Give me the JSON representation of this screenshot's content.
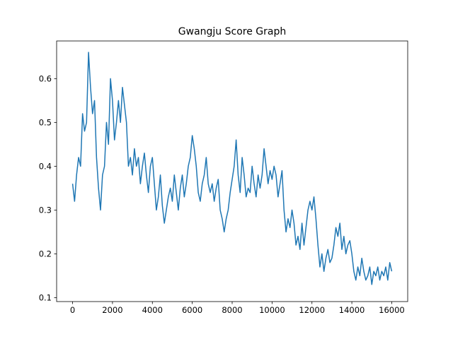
{
  "chart_data": {
    "type": "line",
    "title": "Gwangju Score Graph",
    "x": [
      0,
      100,
      200,
      300,
      400,
      500,
      600,
      700,
      800,
      900,
      1000,
      1100,
      1200,
      1300,
      1400,
      1500,
      1600,
      1700,
      1800,
      1900,
      2000,
      2100,
      2200,
      2300,
      2400,
      2500,
      2600,
      2700,
      2800,
      2900,
      3000,
      3100,
      3200,
      3300,
      3400,
      3500,
      3600,
      3700,
      3800,
      3900,
      4000,
      4100,
      4200,
      4300,
      4400,
      4500,
      4600,
      4700,
      4800,
      4900,
      5000,
      5100,
      5200,
      5300,
      5400,
      5500,
      5600,
      5700,
      5800,
      5900,
      6000,
      6100,
      6200,
      6300,
      6400,
      6500,
      6600,
      6700,
      6800,
      6900,
      7000,
      7100,
      7200,
      7300,
      7400,
      7500,
      7600,
      7700,
      7800,
      7900,
      8000,
      8100,
      8200,
      8300,
      8400,
      8500,
      8600,
      8700,
      8800,
      8900,
      9000,
      9100,
      9200,
      9300,
      9400,
      9500,
      9600,
      9700,
      9800,
      9900,
      10000,
      10100,
      10200,
      10300,
      10400,
      10500,
      10600,
      10700,
      10800,
      10900,
      11000,
      11100,
      11200,
      11300,
      11400,
      11500,
      11600,
      11700,
      11800,
      11900,
      12000,
      12100,
      12200,
      12300,
      12400,
      12500,
      12600,
      12700,
      12800,
      12900,
      13000,
      13100,
      13200,
      13300,
      13400,
      13500,
      13600,
      13700,
      13800,
      13900,
      14000,
      14100,
      14200,
      14300,
      14400,
      14500,
      14600,
      14700,
      14800,
      14900,
      15000,
      15100,
      15200,
      15300,
      15400,
      15500,
      15600,
      15700,
      15800,
      15900,
      16000
    ],
    "values": [
      0.36,
      0.32,
      0.38,
      0.42,
      0.4,
      0.52,
      0.48,
      0.5,
      0.66,
      0.58,
      0.52,
      0.55,
      0.42,
      0.35,
      0.3,
      0.38,
      0.4,
      0.5,
      0.45,
      0.6,
      0.55,
      0.46,
      0.5,
      0.55,
      0.5,
      0.58,
      0.54,
      0.5,
      0.4,
      0.42,
      0.38,
      0.44,
      0.4,
      0.42,
      0.36,
      0.4,
      0.43,
      0.38,
      0.34,
      0.4,
      0.42,
      0.36,
      0.3,
      0.33,
      0.38,
      0.31,
      0.27,
      0.3,
      0.33,
      0.35,
      0.32,
      0.38,
      0.34,
      0.3,
      0.35,
      0.38,
      0.33,
      0.36,
      0.4,
      0.42,
      0.47,
      0.44,
      0.4,
      0.34,
      0.32,
      0.36,
      0.38,
      0.42,
      0.36,
      0.34,
      0.36,
      0.32,
      0.35,
      0.37,
      0.3,
      0.28,
      0.25,
      0.28,
      0.3,
      0.34,
      0.37,
      0.4,
      0.46,
      0.38,
      0.34,
      0.42,
      0.38,
      0.33,
      0.35,
      0.34,
      0.4,
      0.36,
      0.33,
      0.38,
      0.35,
      0.38,
      0.44,
      0.4,
      0.36,
      0.39,
      0.37,
      0.4,
      0.38,
      0.33,
      0.36,
      0.39,
      0.3,
      0.25,
      0.28,
      0.26,
      0.3,
      0.27,
      0.22,
      0.24,
      0.21,
      0.27,
      0.22,
      0.26,
      0.3,
      0.32,
      0.3,
      0.33,
      0.28,
      0.22,
      0.17,
      0.2,
      0.16,
      0.19,
      0.21,
      0.18,
      0.19,
      0.22,
      0.26,
      0.24,
      0.27,
      0.21,
      0.24,
      0.2,
      0.22,
      0.23,
      0.2,
      0.16,
      0.14,
      0.17,
      0.15,
      0.19,
      0.16,
      0.14,
      0.15,
      0.17,
      0.13,
      0.16,
      0.15,
      0.17,
      0.14,
      0.16,
      0.15,
      0.17,
      0.14,
      0.18,
      0.16
    ],
    "color": "#1f77b4",
    "xlim": [
      -800,
      16800
    ],
    "xticks": [
      0,
      2000,
      4000,
      6000,
      8000,
      10000,
      12000,
      14000,
      16000
    ],
    "ylim": [
      0.091,
      0.686
    ],
    "yticks": [
      0.1,
      0.2,
      0.3,
      0.4,
      0.5,
      0.6
    ],
    "grid": false
  }
}
